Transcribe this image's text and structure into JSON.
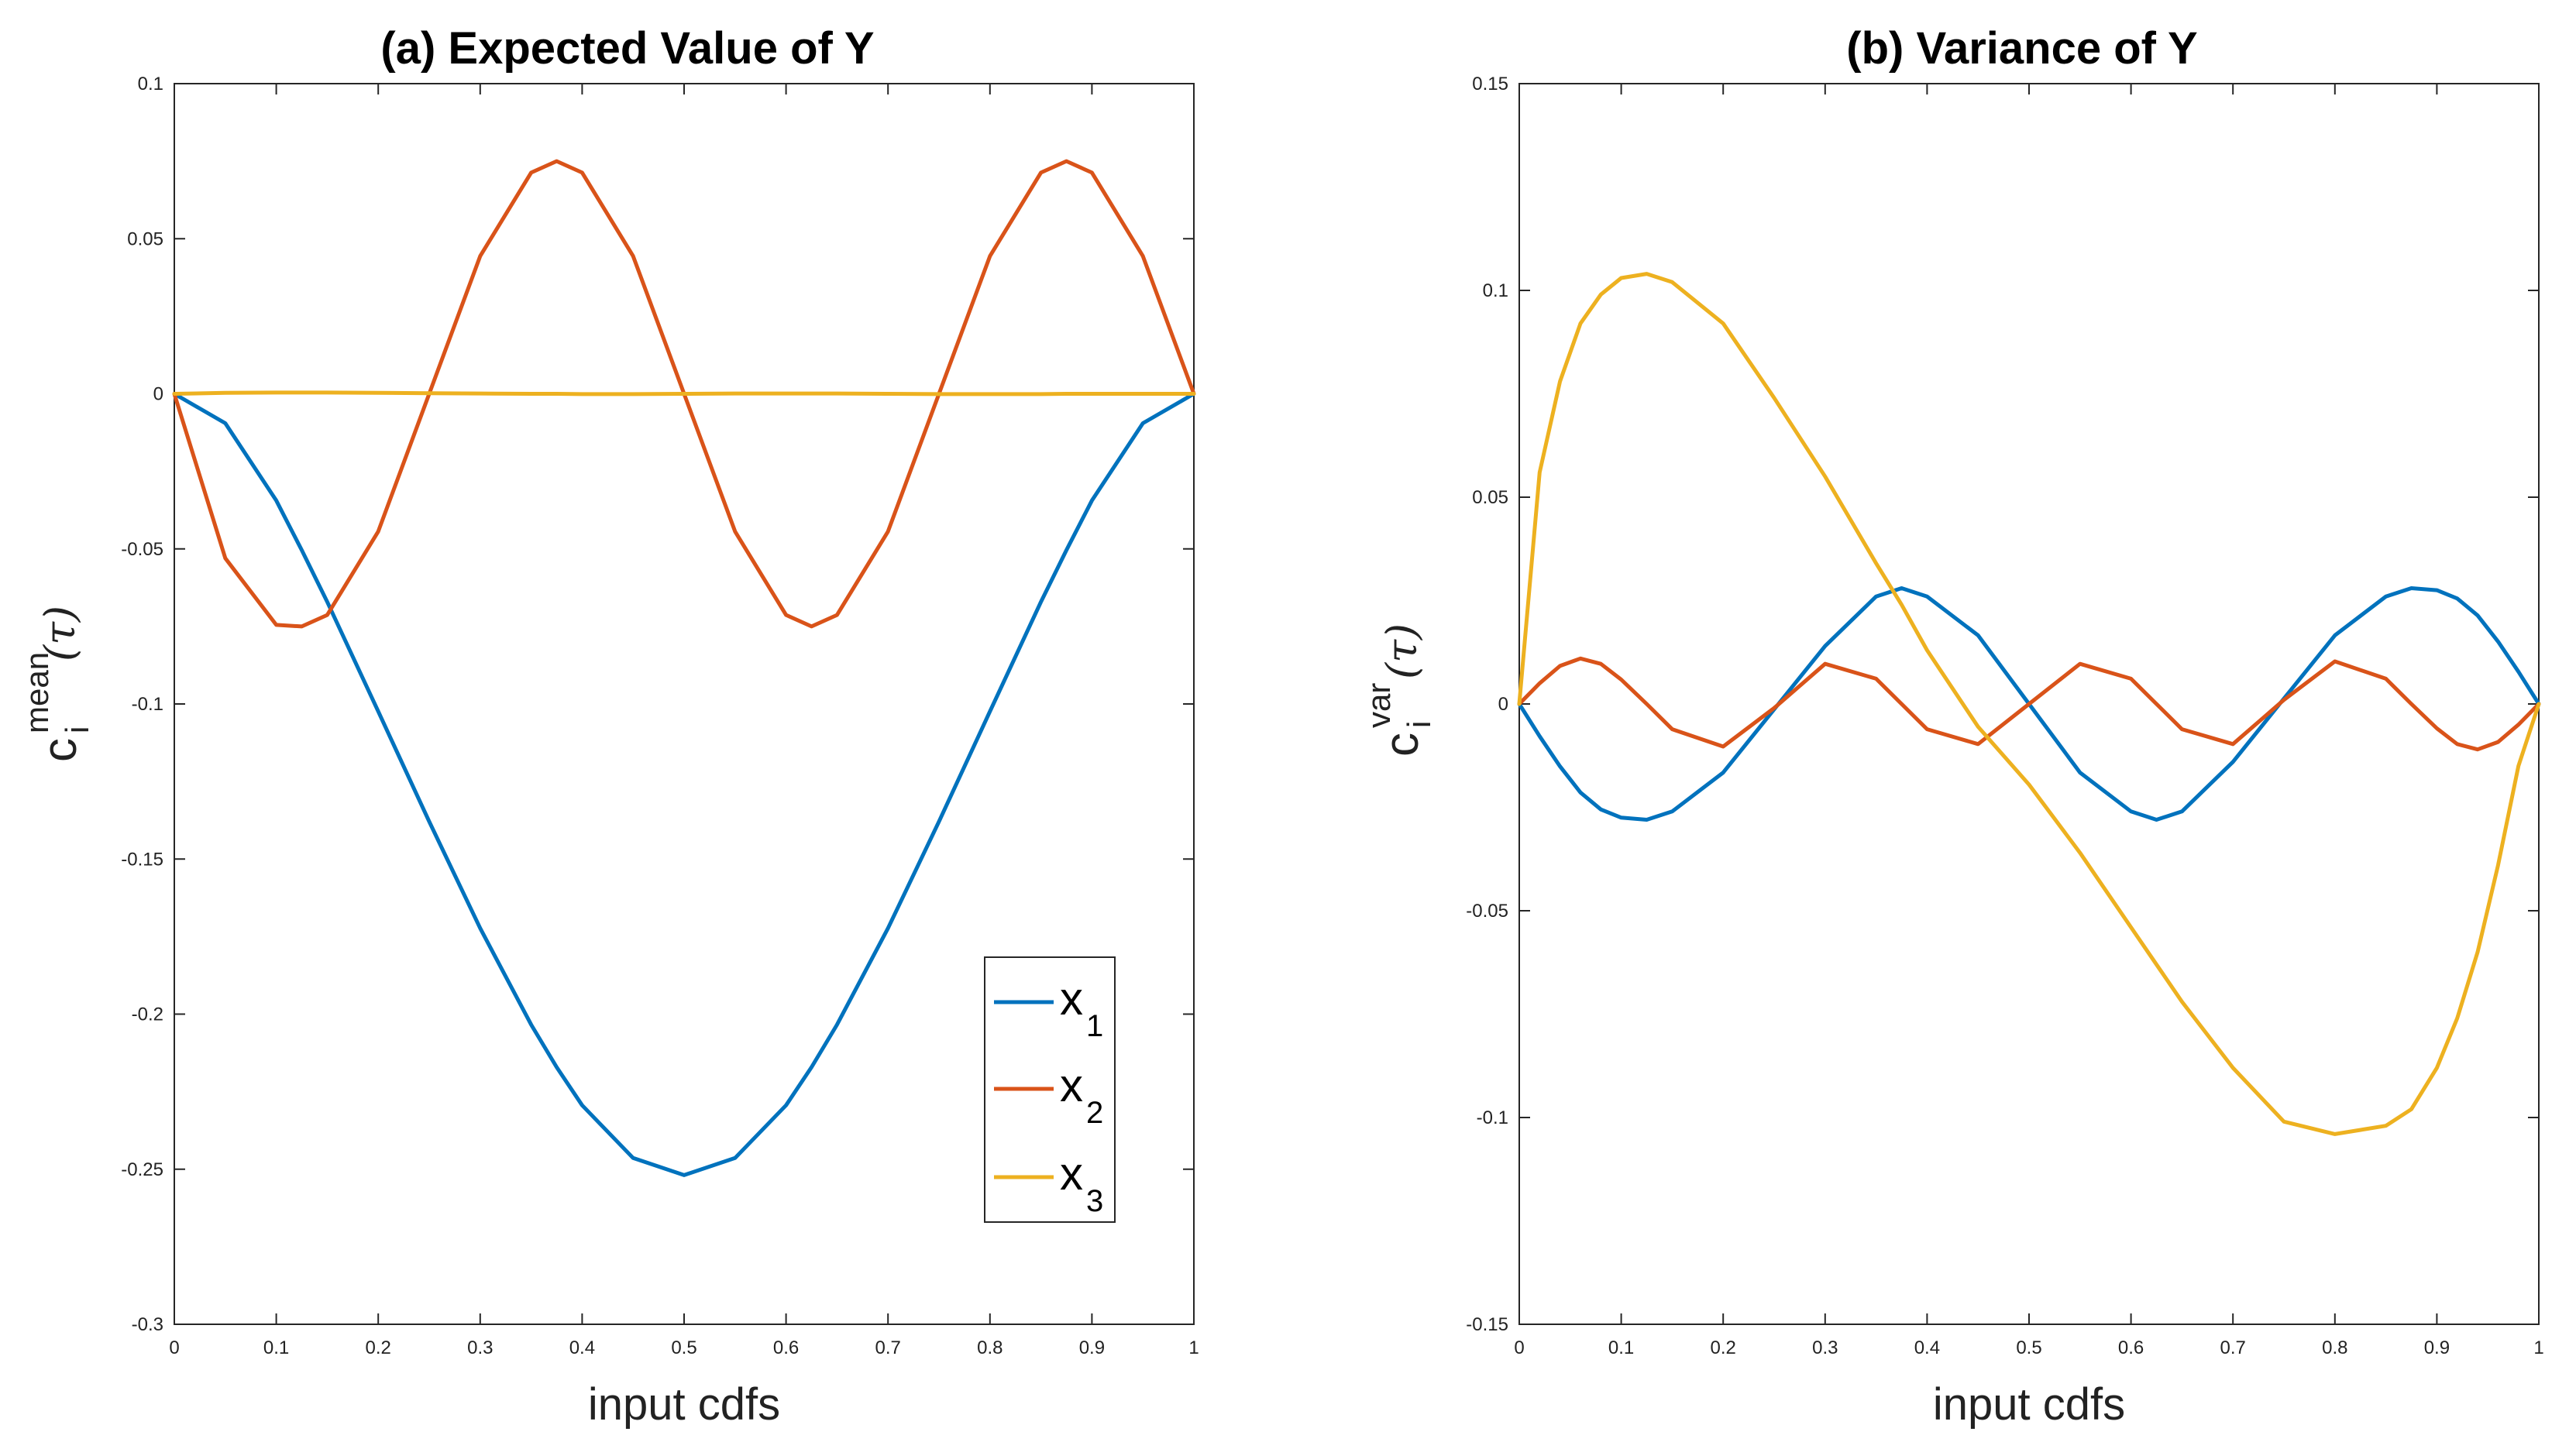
{
  "colors": {
    "x1": "#0072BD",
    "x2": "#D95319",
    "x3": "#EDB120",
    "axis": "#262626"
  },
  "chart_data": [
    {
      "type": "line",
      "title": "(a) Expected Value of Y",
      "xlabel": "input cdfs",
      "ylabel": {
        "main": "c",
        "sup": "mean",
        "sub": "i",
        "arg": "(τ)"
      },
      "xlim": [
        0,
        1
      ],
      "ylim": [
        -0.3,
        0.1
      ],
      "xticks": [
        "0",
        "0.1",
        "0.2",
        "0.3",
        "0.4",
        "0.5",
        "0.6",
        "0.7",
        "0.8",
        "0.9",
        "1"
      ],
      "yticks": [
        "-0.3",
        "-0.25",
        "-0.2",
        "-0.15",
        "-0.1",
        "-0.05",
        "0",
        "0.05",
        "0.1"
      ],
      "legend": {
        "placement": "bottom-right",
        "entries": [
          {
            "main": "x",
            "sub": "1"
          },
          {
            "main": "x",
            "sub": "2"
          },
          {
            "main": "x",
            "sub": "3"
          }
        ]
      },
      "x": [
        0,
        0.05,
        0.1,
        0.125,
        0.15,
        0.2,
        0.25,
        0.3,
        0.35,
        0.375,
        0.4,
        0.45,
        0.5,
        0.55,
        0.6,
        0.625,
        0.65,
        0.7,
        0.75,
        0.8,
        0.85,
        0.875,
        0.9,
        0.95,
        1
      ],
      "series": [
        {
          "name": "x1",
          "values": [
            0,
            -0.0095,
            -0.0344,
            -0.0504,
            -0.0671,
            -0.1024,
            -0.1379,
            -0.1723,
            -0.2034,
            -0.2171,
            -0.2294,
            -0.2464,
            -0.2519,
            -0.2464,
            -0.2294,
            -0.2171,
            -0.2034,
            -0.1723,
            -0.1379,
            -0.1024,
            -0.0671,
            -0.0504,
            -0.0344,
            -0.0095,
            0
          ]
        },
        {
          "name": "x2",
          "values": [
            0,
            -0.053,
            -0.0745,
            -0.075,
            -0.0713,
            -0.0444,
            0,
            0.0444,
            0.0713,
            0.075,
            0.0713,
            0.0444,
            0,
            -0.0444,
            -0.0713,
            -0.075,
            -0.0713,
            -0.0444,
            0,
            0.0444,
            0.0713,
            0.075,
            0.0713,
            0.0444,
            0
          ]
        },
        {
          "name": "x3",
          "values": [
            0,
            0.0003,
            0.0004,
            0.0004,
            0.0004,
            0.0003,
            0.0002,
            0.0001,
            0,
            0,
            -0.0001,
            -0.0001,
            0,
            0.0001,
            0.0001,
            0.0001,
            0.0001,
            0,
            -0.0001,
            -0.0001,
            -0.0001,
            0,
            0,
            0,
            0
          ]
        }
      ]
    },
    {
      "type": "line",
      "title": "(b) Variance of Y",
      "xlabel": "input cdfs",
      "ylabel": {
        "main": "c",
        "sup": "var",
        "sub": "i",
        "arg": "(τ)"
      },
      "xlim": [
        0,
        1
      ],
      "ylim": [
        -0.15,
        0.15
      ],
      "xticks": [
        "0",
        "0.1",
        "0.2",
        "0.3",
        "0.4",
        "0.5",
        "0.6",
        "0.7",
        "0.8",
        "0.9",
        "1"
      ],
      "yticks": [
        "-0.15",
        "-0.1",
        "-0.05",
        "0",
        "0.05",
        "0.1",
        "0.15"
      ],
      "x": [
        0,
        0.02,
        0.04,
        0.06,
        0.08,
        0.1,
        0.125,
        0.15,
        0.2,
        0.25,
        0.3,
        0.35,
        0.375,
        0.4,
        0.45,
        0.5,
        0.55,
        0.6,
        0.625,
        0.65,
        0.7,
        0.75,
        0.8,
        0.85,
        0.875,
        0.9,
        0.92,
        0.94,
        0.96,
        0.98,
        1
      ],
      "series": [
        {
          "name": "x1",
          "values": [
            0,
            -0.0078,
            -0.0151,
            -0.0214,
            -0.0255,
            -0.0275,
            -0.028,
            -0.026,
            -0.0166,
            -0.0013,
            0.014,
            0.026,
            0.028,
            0.026,
            0.0166,
            0,
            -0.0166,
            -0.026,
            -0.028,
            -0.026,
            -0.014,
            0.0013,
            0.0166,
            0.026,
            0.028,
            0.0275,
            0.0255,
            0.0214,
            0.0151,
            0.0078,
            0
          ]
        },
        {
          "name": "x2",
          "values": [
            0,
            0.005,
            0.0092,
            0.011,
            0.0097,
            0.0059,
            0,
            -0.0061,
            -0.0103,
            -0.001,
            0.0097,
            0.0061,
            0,
            -0.0061,
            -0.0097,
            0,
            0.0097,
            0.0061,
            0,
            -0.0061,
            -0.0097,
            0.001,
            0.0103,
            0.0061,
            0,
            -0.0059,
            -0.0097,
            -0.011,
            -0.0092,
            -0.005,
            0
          ]
        },
        {
          "name": "x3",
          "values": [
            0,
            0.056,
            0.078,
            0.092,
            0.099,
            0.103,
            0.104,
            0.102,
            0.092,
            0.074,
            0.055,
            0.034,
            0.024,
            0.013,
            -0.0055,
            -0.0195,
            -0.036,
            -0.054,
            -0.063,
            -0.072,
            -0.088,
            -0.101,
            -0.104,
            -0.102,
            -0.098,
            -0.088,
            -0.076,
            -0.06,
            -0.039,
            -0.015,
            0
          ]
        }
      ]
    }
  ]
}
